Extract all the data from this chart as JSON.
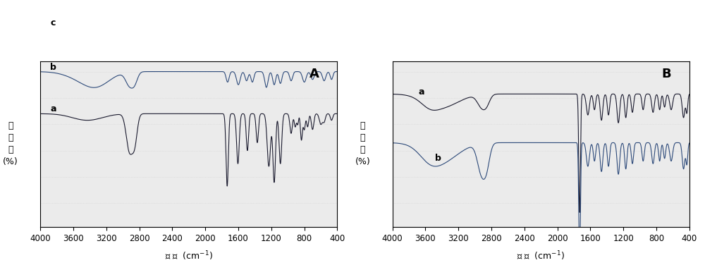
{
  "title_A": "A",
  "title_B": "B",
  "xlabel_latin": "  (cm",
  "xlabel_sup": "-1",
  "xlabel_end": ")",
  "xmin": 400,
  "xmax": 4000,
  "xticks": [
    4000,
    3600,
    3200,
    2800,
    2400,
    2000,
    1600,
    1200,
    800,
    400
  ],
  "background": "#f0f0f0",
  "line_color_a": "#1a1a2e",
  "line_color_b": "#2d4a7a",
  "line_color_c": "#8b1a4a",
  "label_a": "a",
  "label_b": "b",
  "label_c": "c"
}
